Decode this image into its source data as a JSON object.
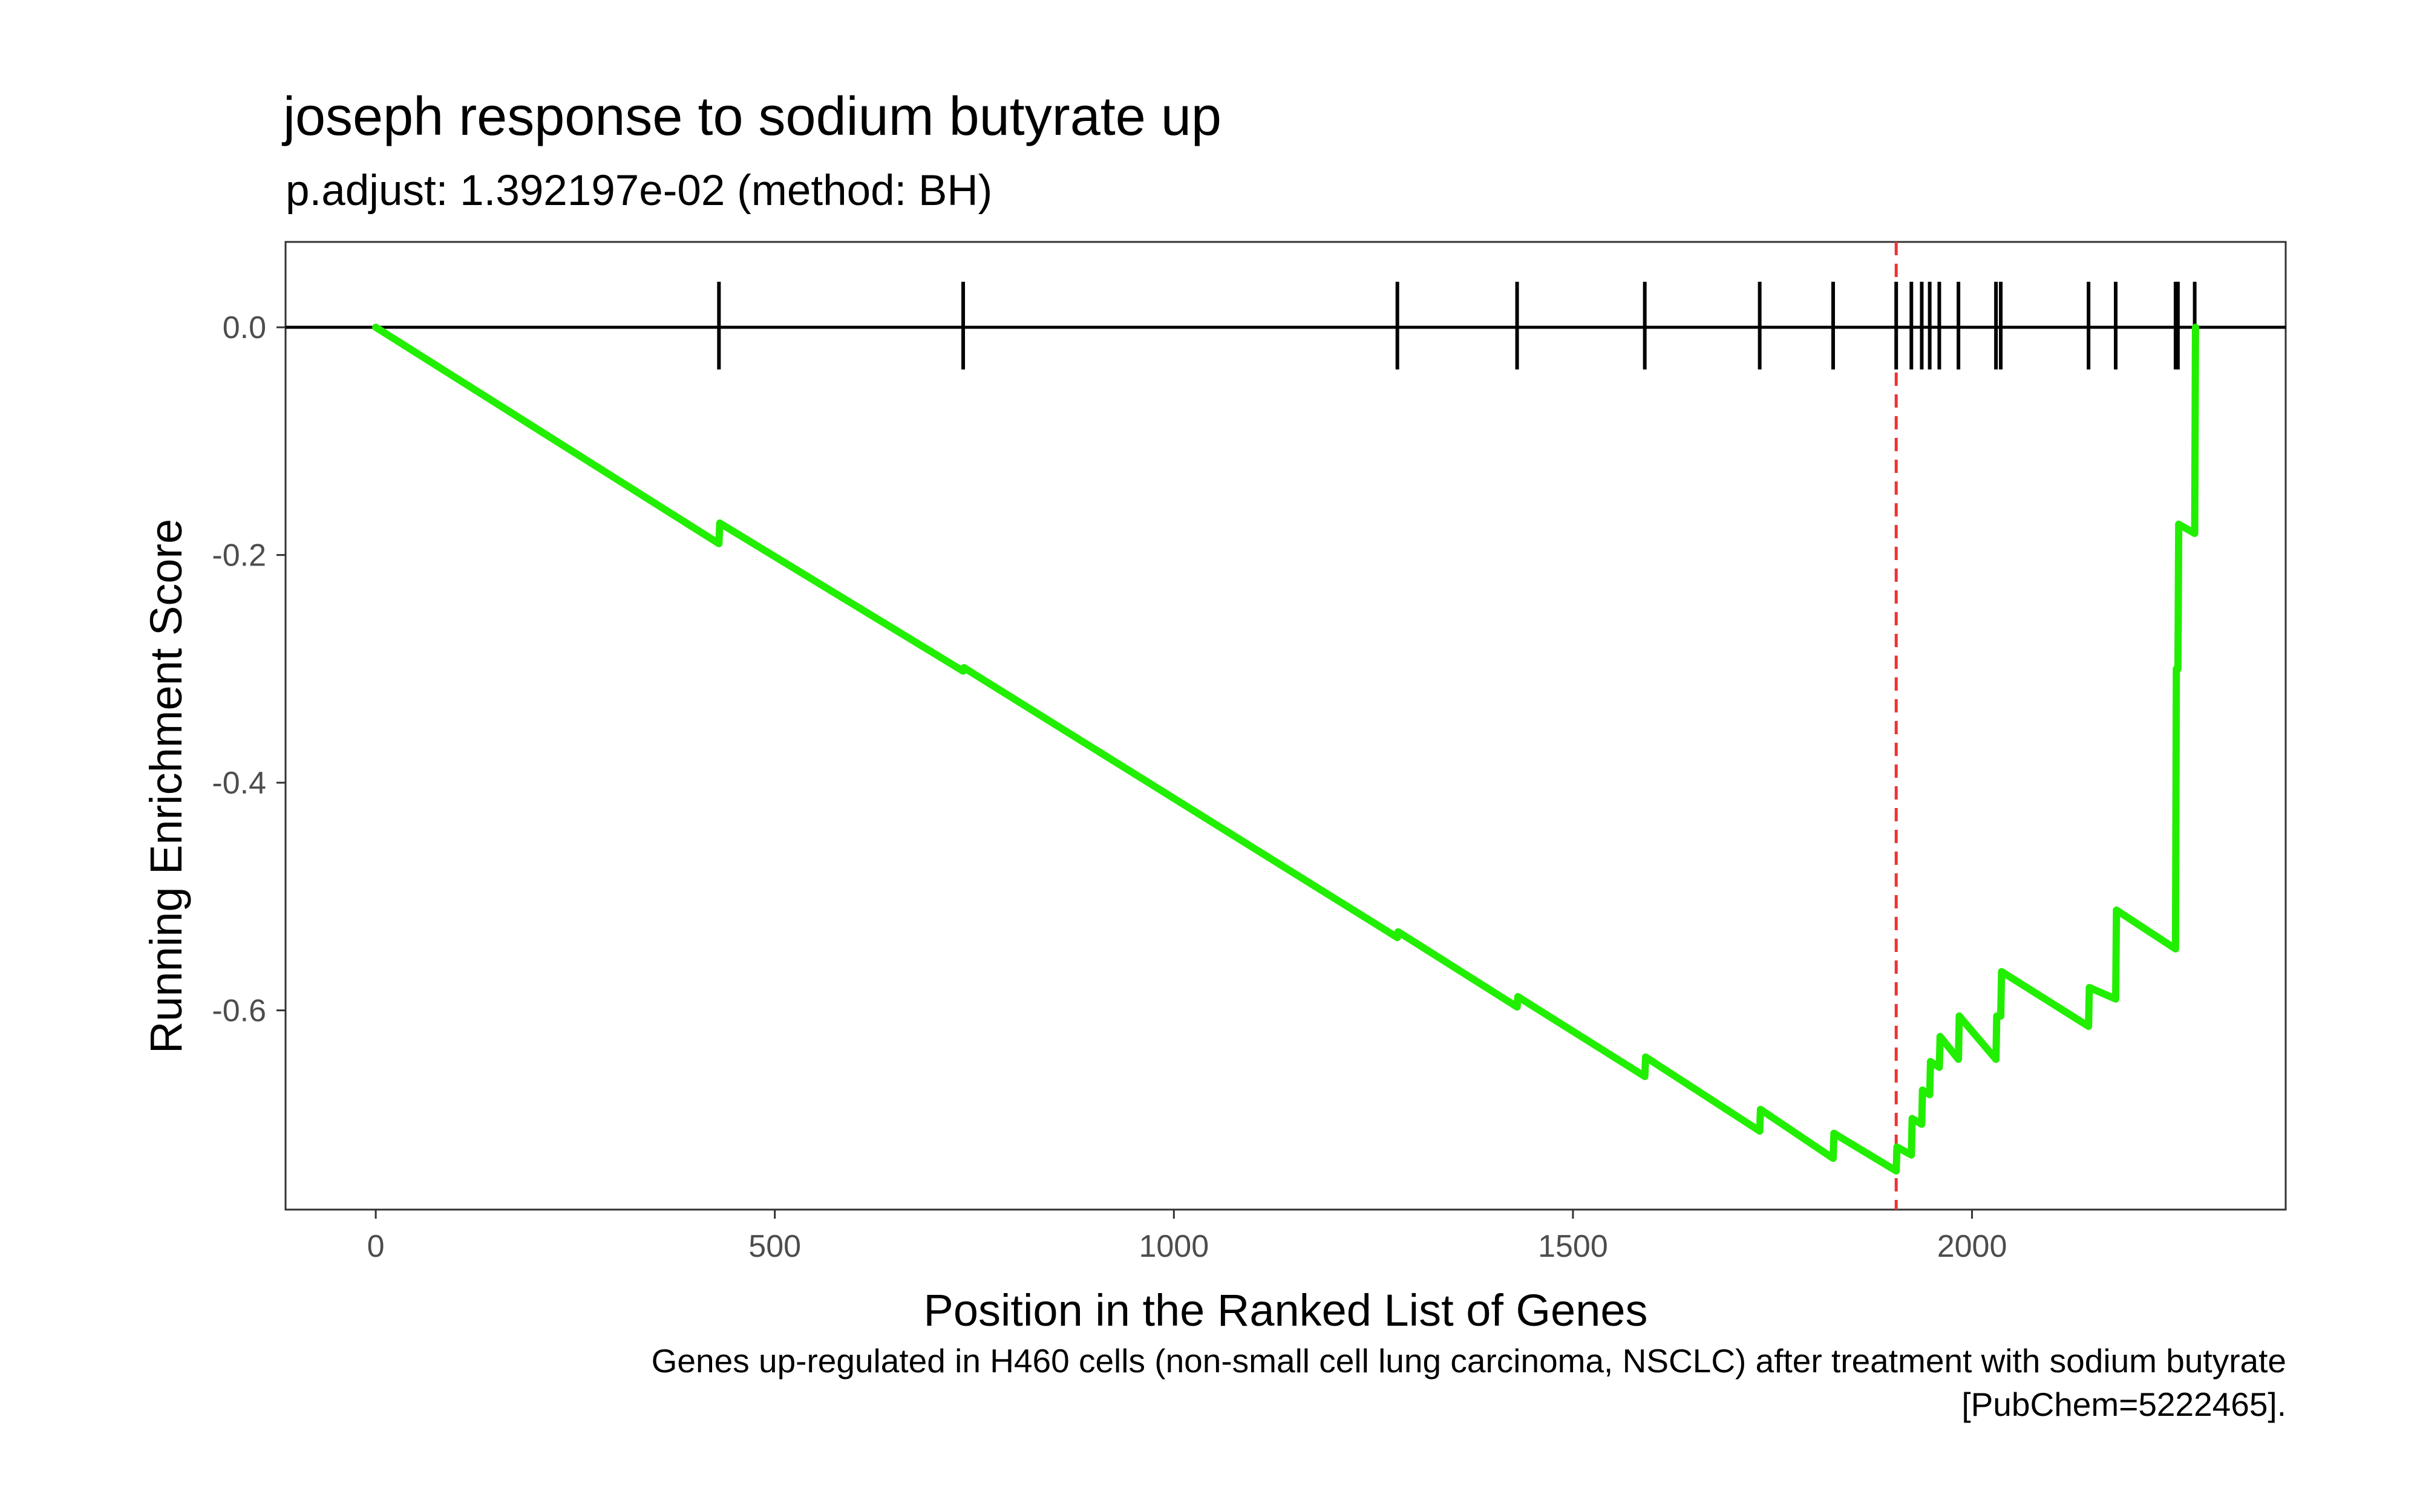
{
  "chart_data": {
    "type": "line",
    "title": "joseph response to sodium butyrate up",
    "subtitle": "p.adjust: 1.392197e-02 (method: BH)",
    "xlabel": "Position in the Ranked List of Genes",
    "ylabel": "Running Enrichment Score",
    "caption_lines": [
      "Genes up-regulated in H460 cells (non-small cell lung carcinoma, NSCLC) after treatment with sodium butyrate",
      "[PubChem=5222465]."
    ],
    "xlim": [
      -113,
      2393
    ],
    "ylim": [
      -0.775,
      0.075
    ],
    "x_ticks": [
      0,
      500,
      1000,
      1500,
      2000
    ],
    "x_tick_labels": [
      "0",
      "500",
      "1000",
      "1500",
      "2000"
    ],
    "y_ticks": [
      0.0,
      -0.2,
      -0.4,
      -0.6
    ],
    "y_tick_labels": [
      "0.0",
      "-0.2",
      "-0.4",
      "-0.6"
    ],
    "grid": false,
    "colors": {
      "curve": "#22ee00",
      "peak_line": "#ee3333",
      "zero_line": "#000000",
      "hits": "#000000"
    },
    "series": [
      {
        "x": [
          0,
          430,
          431,
          736,
          737,
          1280,
          1281,
          1430,
          1431,
          1590,
          1591,
          1734,
          1735,
          1826,
          1827,
          1905,
          1906,
          1924,
          1925,
          1937,
          1938,
          1947,
          1948,
          1959,
          1960,
          1983,
          1984,
          2030,
          2031,
          2036,
          2037,
          2146,
          2147,
          2180,
          2181,
          2255,
          2256,
          2258,
          2259,
          2279,
          2280
        ],
        "y": [
          0.0,
          -0.19,
          -0.172,
          -0.302,
          -0.299,
          -0.536,
          -0.531,
          -0.597,
          -0.588,
          -0.658,
          -0.641,
          -0.706,
          -0.687,
          -0.73,
          -0.708,
          -0.741,
          -0.72,
          -0.727,
          -0.695,
          -0.7,
          -0.67,
          -0.674,
          -0.645,
          -0.65,
          -0.623,
          -0.643,
          -0.605,
          -0.643,
          -0.605,
          -0.605,
          -0.566,
          -0.614,
          -0.58,
          -0.59,
          -0.512,
          -0.546,
          -0.3,
          -0.3,
          -0.173,
          -0.181,
          0.0
        ]
      }
    ],
    "hit_positions": [
      430,
      736,
      1280,
      1430,
      1590,
      1734,
      1826,
      1905,
      1924,
      1937,
      1947,
      1959,
      1983,
      2030,
      2036,
      2146,
      2180,
      2255,
      2258,
      2279
    ],
    "peak_position": 1905
  }
}
